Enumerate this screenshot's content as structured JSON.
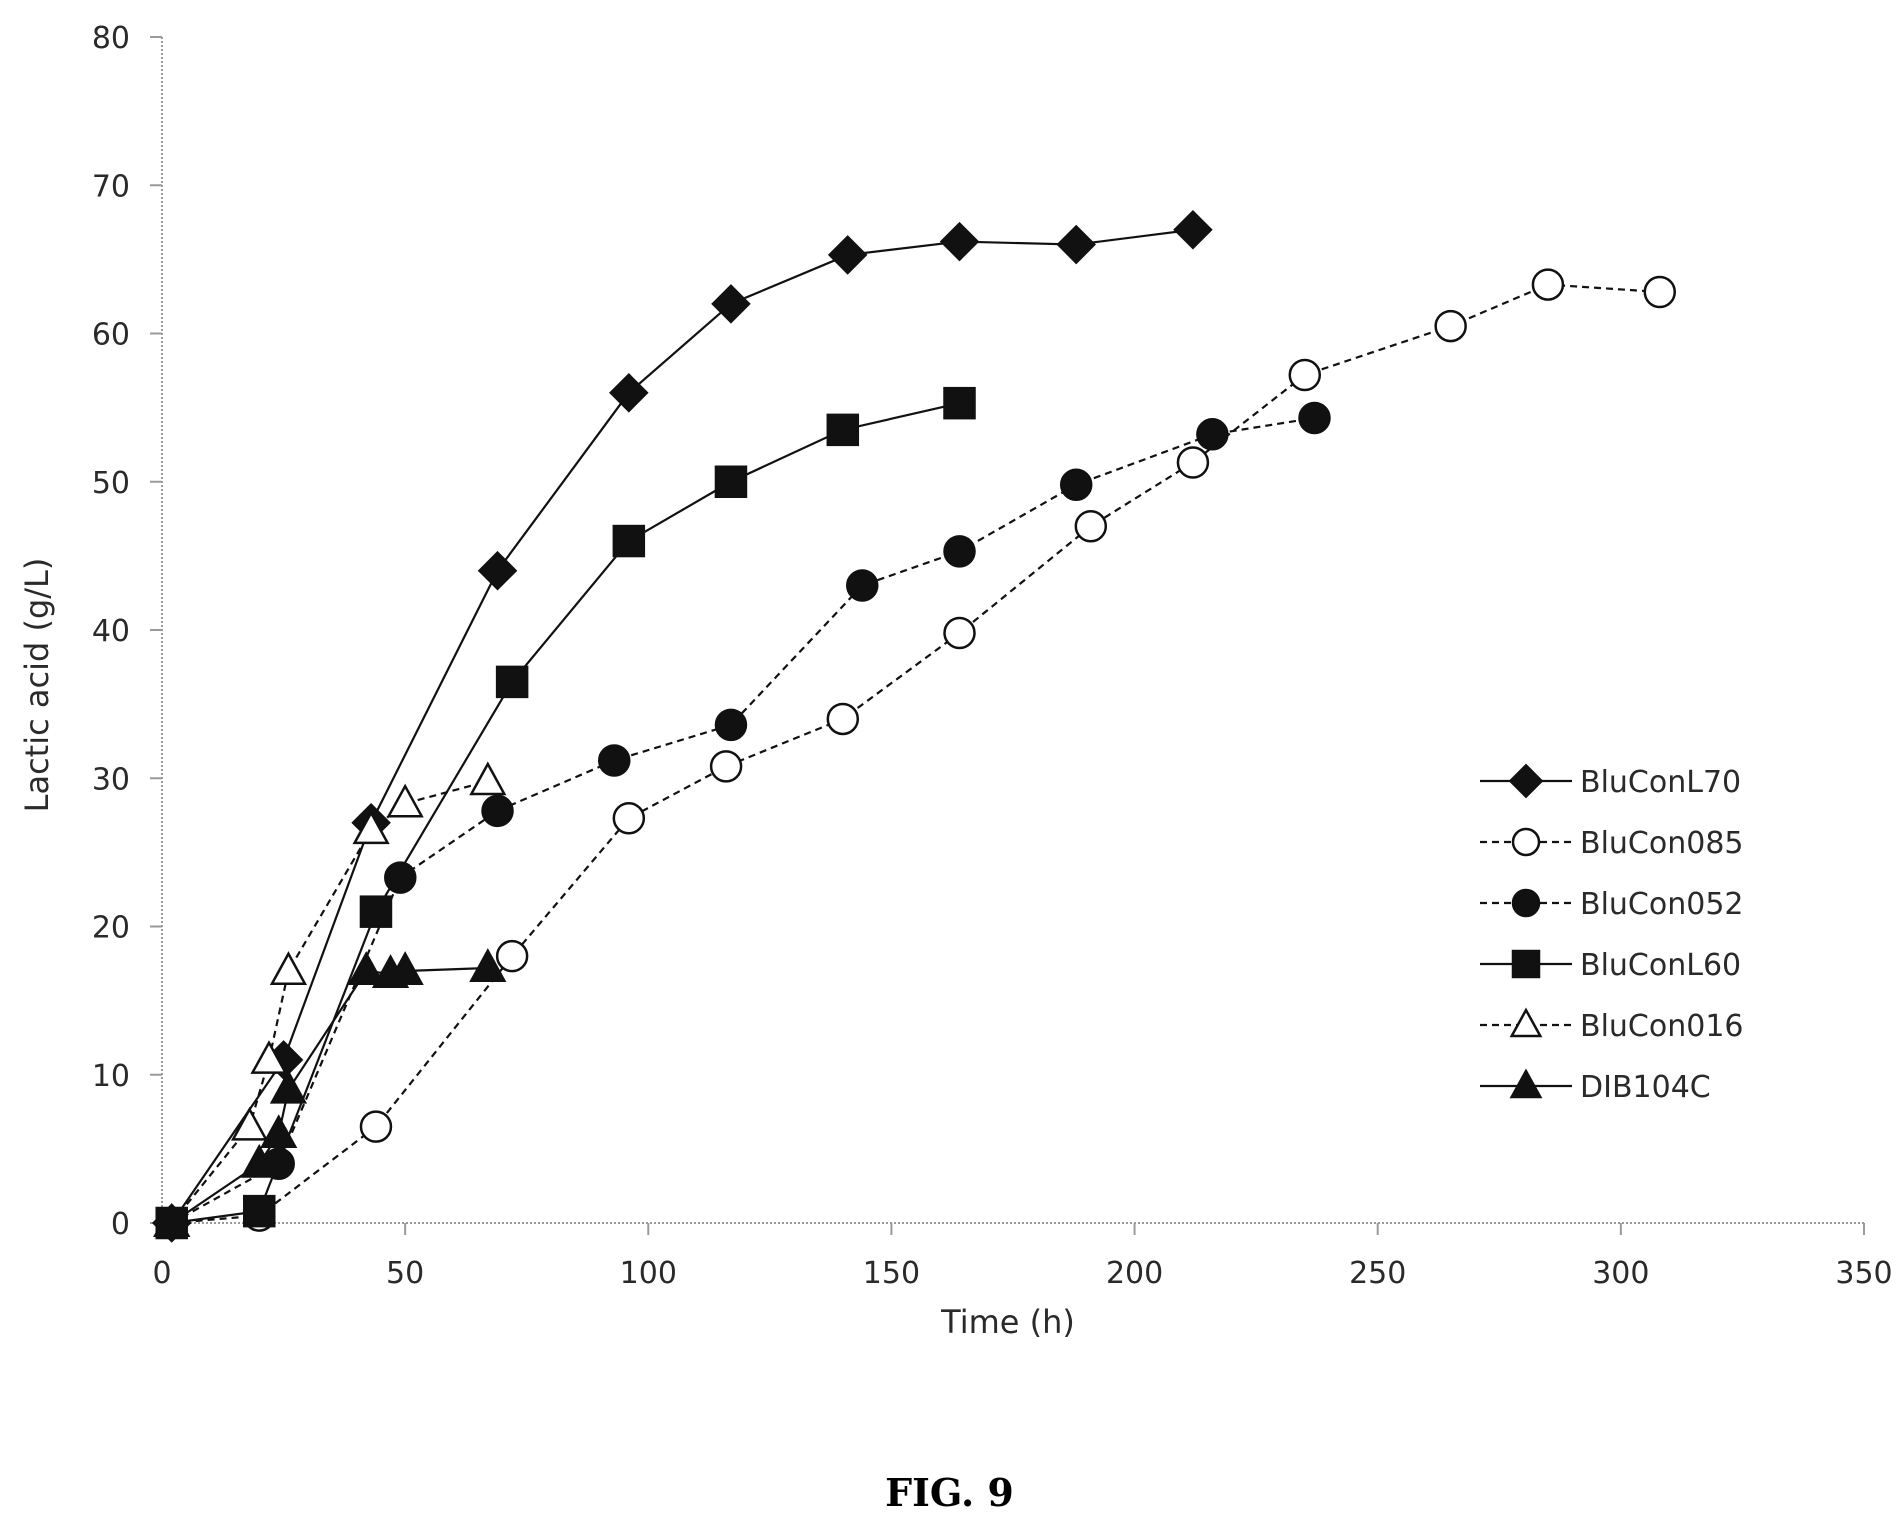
{
  "figure_caption": "FIG. 9",
  "chart_data": {
    "type": "line",
    "title": "",
    "xlabel": "Time (h)",
    "ylabel": "Lactic acid (g/L)",
    "xlim": [
      0,
      350
    ],
    "ylim": [
      0,
      80
    ],
    "xticks": [
      0,
      50,
      100,
      150,
      200,
      250,
      300,
      350
    ],
    "yticks": [
      0,
      10,
      20,
      30,
      40,
      50,
      60,
      70,
      80
    ],
    "grid": false,
    "legend_position": "right",
    "series": [
      {
        "name": "BluConL70",
        "marker": "diamond",
        "filled": true,
        "dashed": false,
        "color": "#111111",
        "x": [
          2,
          25,
          43,
          69,
          96,
          117,
          141,
          164,
          188,
          212
        ],
        "y": [
          0,
          11,
          27,
          44,
          56,
          62,
          65.3,
          66.2,
          66,
          67
        ]
      },
      {
        "name": "BluCon085",
        "marker": "circle",
        "filled": false,
        "dashed": true,
        "color": "#111111",
        "x": [
          2,
          20,
          44,
          72,
          96,
          116,
          140,
          164,
          191,
          212,
          235,
          265,
          285,
          308
        ],
        "y": [
          0,
          0.5,
          6.5,
          18,
          27.3,
          30.8,
          34,
          39.8,
          47,
          51.3,
          57.2,
          60.5,
          63.3,
          62.8
        ]
      },
      {
        "name": "BluCon052",
        "marker": "circle",
        "filled": true,
        "dashed": true,
        "color": "#111111",
        "x": [
          2,
          24,
          49,
          69,
          93,
          117,
          144,
          164,
          188,
          216,
          237
        ],
        "y": [
          0,
          4,
          23.3,
          27.8,
          31.2,
          33.6,
          43,
          45.3,
          49.8,
          53.2,
          54.3
        ]
      },
      {
        "name": "BluConL60",
        "marker": "square",
        "filled": true,
        "dashed": false,
        "color": "#111111",
        "x": [
          2,
          20,
          44,
          72,
          96,
          117,
          140,
          164
        ],
        "y": [
          0,
          0.8,
          21,
          36.5,
          46,
          50,
          53.5,
          55.3
        ]
      },
      {
        "name": "BluCon016",
        "marker": "triangle",
        "filled": false,
        "dashed": true,
        "color": "#111111",
        "x": [
          2,
          18,
          22,
          26,
          43,
          50,
          67
        ],
        "y": [
          0,
          6.5,
          11,
          17,
          26.5,
          28.3,
          29.8
        ]
      },
      {
        "name": "DIB104C",
        "marker": "triangle",
        "filled": true,
        "dashed": false,
        "color": "#111111",
        "x": [
          2,
          20,
          24,
          26,
          42,
          47,
          50,
          67
        ],
        "y": [
          0,
          4,
          6,
          9,
          17,
          16.8,
          17,
          17.2
        ]
      }
    ]
  }
}
